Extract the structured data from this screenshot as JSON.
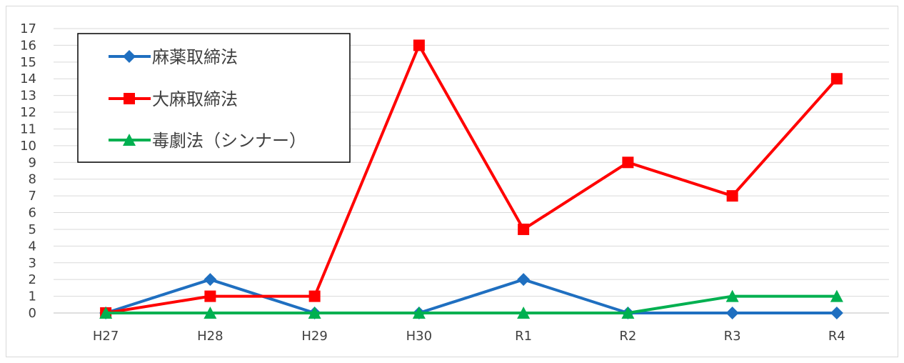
{
  "chart_data": {
    "type": "line",
    "categories": [
      "H27",
      "H28",
      "H29",
      "H30",
      "R1",
      "R2",
      "R3",
      "R4"
    ],
    "ylim": [
      0,
      17
    ],
    "yticks": [
      0,
      1,
      2,
      3,
      4,
      5,
      6,
      7,
      8,
      9,
      10,
      11,
      12,
      13,
      14,
      15,
      16,
      17
    ],
    "grid": true,
    "legend_position": "top-left",
    "series": [
      {
        "name": "麻薬取締法",
        "color": "#1f6fc0",
        "marker": "diamond",
        "values": [
          0,
          2,
          0,
          0,
          2,
          0,
          0,
          0
        ]
      },
      {
        "name": "大麻取締法",
        "color": "#ff0000",
        "marker": "square",
        "values": [
          0,
          1,
          1,
          16,
          5,
          9,
          7,
          14
        ]
      },
      {
        "name": "毒劇法（シンナー）",
        "color": "#00b050",
        "marker": "triangle",
        "values": [
          0,
          0,
          0,
          0,
          0,
          0,
          1,
          1
        ]
      }
    ]
  }
}
